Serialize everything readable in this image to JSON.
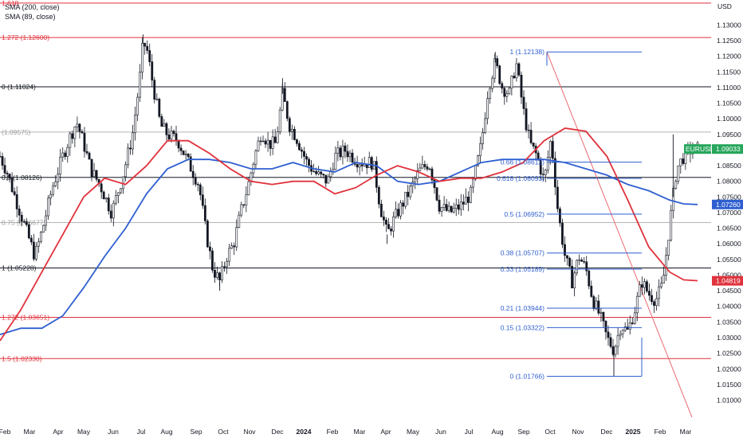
{
  "legend": {
    "sma200": "SMA (200, close)",
    "sma89": "SMA (89, close)"
  },
  "currency": "USD",
  "colors": {
    "candle": "#131722",
    "sma200": "#2f5fd0",
    "sma89": "#e0323c",
    "fib_red": "#e0323c",
    "fib_black": "#131722",
    "fib_gray": "#9e9e9e",
    "fib_blue": "#2f5fd0",
    "eurusd_tag": "#26a65b",
    "trendline": "#e86a72"
  },
  "chart_data": {
    "type": "candlestick",
    "symbol": "EURUSD",
    "current_price": "1.09033",
    "sma200_value": "1.07260",
    "sma89_value": "1.04819",
    "ylim": [
      1.003,
      1.138
    ],
    "y_ticks": [
      "1.13000",
      "1.12500",
      "1.12000",
      "1.11500",
      "1.11000",
      "1.10500",
      "1.10000",
      "1.09500",
      "1.09000",
      "1.08500",
      "1.08000",
      "1.07500",
      "1.07000",
      "1.06500",
      "1.06000",
      "1.05500",
      "1.05000",
      "1.04500",
      "1.04000",
      "1.03500",
      "1.03000",
      "1.02500",
      "1.02000",
      "1.01500",
      "1.01000"
    ],
    "x_labels": [
      "Feb",
      "Mar",
      "Apr",
      "May",
      "Jun",
      "Jul",
      "Aug",
      "Sep",
      "Oct",
      "Nov",
      "Dec",
      "2024",
      "Feb",
      "Mar",
      "Apr",
      "May",
      "Jun",
      "Jul",
      "Aug",
      "Sep",
      "Oct",
      "Nov",
      "Dec",
      "2025",
      "Feb",
      "Mar"
    ],
    "x_bold": [
      "2024",
      "2025"
    ],
    "close_path": [
      [
        0,
        1.088
      ],
      [
        0.01,
        1.083
      ],
      [
        0.02,
        1.076
      ],
      [
        0.035,
        1.066
      ],
      [
        0.05,
        1.056
      ],
      [
        0.06,
        1.064
      ],
      [
        0.075,
        1.078
      ],
      [
        0.09,
        1.088
      ],
      [
        0.1,
        1.094
      ],
      [
        0.11,
        1.099
      ],
      [
        0.12,
        1.092
      ],
      [
        0.13,
        1.084
      ],
      [
        0.145,
        1.078
      ],
      [
        0.16,
        1.07
      ],
      [
        0.175,
        1.081
      ],
      [
        0.19,
        1.095
      ],
      [
        0.2,
        1.112
      ],
      [
        0.205,
        1.124
      ],
      [
        0.21,
        1.123
      ],
      [
        0.22,
        1.11
      ],
      [
        0.23,
        1.098
      ],
      [
        0.24,
        1.095
      ],
      [
        0.255,
        1.093
      ],
      [
        0.27,
        1.086
      ],
      [
        0.285,
        1.079
      ],
      [
        0.295,
        1.064
      ],
      [
        0.305,
        1.052
      ],
      [
        0.315,
        1.048
      ],
      [
        0.325,
        1.056
      ],
      [
        0.335,
        1.06
      ],
      [
        0.345,
        1.07
      ],
      [
        0.355,
        1.078
      ],
      [
        0.365,
        1.088
      ],
      [
        0.375,
        1.096
      ],
      [
        0.385,
        1.092
      ],
      [
        0.395,
        1.092
      ],
      [
        0.405,
        1.108
      ],
      [
        0.415,
        1.098
      ],
      [
        0.425,
        1.094
      ],
      [
        0.44,
        1.086
      ],
      [
        0.455,
        1.082
      ],
      [
        0.47,
        1.08
      ],
      [
        0.48,
        1.088
      ],
      [
        0.495,
        1.09
      ],
      [
        0.51,
        1.087
      ],
      [
        0.52,
        1.086
      ],
      [
        0.535,
        1.086
      ],
      [
        0.545,
        1.072
      ],
      [
        0.555,
        1.063
      ],
      [
        0.565,
        1.068
      ],
      [
        0.575,
        1.072
      ],
      [
        0.59,
        1.078
      ],
      [
        0.6,
        1.083
      ],
      [
        0.615,
        1.086
      ],
      [
        0.63,
        1.072
      ],
      [
        0.645,
        1.07
      ],
      [
        0.66,
        1.072
      ],
      [
        0.675,
        1.076
      ],
      [
        0.69,
        1.092
      ],
      [
        0.7,
        1.11
      ],
      [
        0.71,
        1.118
      ],
      [
        0.72,
        1.11
      ],
      [
        0.73,
        1.108
      ],
      [
        0.74,
        1.118
      ],
      [
        0.75,
        1.103
      ],
      [
        0.76,
        1.092
      ],
      [
        0.77,
        1.088
      ],
      [
        0.78,
        1.08
      ],
      [
        0.79,
        1.094
      ],
      [
        0.8,
        1.07
      ],
      [
        0.81,
        1.056
      ],
      [
        0.82,
        1.048
      ],
      [
        0.83,
        1.056
      ],
      [
        0.84,
        1.052
      ],
      [
        0.85,
        1.042
      ],
      [
        0.86,
        1.037
      ],
      [
        0.87,
        1.03
      ],
      [
        0.88,
        1.026
      ],
      [
        0.89,
        1.034
      ],
      [
        0.9,
        1.032
      ],
      [
        0.91,
        1.039
      ],
      [
        0.92,
        1.048
      ],
      [
        0.93,
        1.044
      ],
      [
        0.94,
        1.042
      ],
      [
        0.95,
        1.047
      ],
      [
        0.96,
        1.066
      ],
      [
        0.97,
        1.084
      ],
      [
        0.98,
        1.088
      ],
      [
        0.99,
        1.09
      ],
      [
        1.0,
        1.0903
      ]
    ],
    "sma200_path": [
      [
        0,
        1.031
      ],
      [
        0.03,
        1.033
      ],
      [
        0.06,
        1.033
      ],
      [
        0.09,
        1.037
      ],
      [
        0.12,
        1.046
      ],
      [
        0.15,
        1.056
      ],
      [
        0.18,
        1.065
      ],
      [
        0.21,
        1.076
      ],
      [
        0.24,
        1.084
      ],
      [
        0.27,
        1.087
      ],
      [
        0.3,
        1.087
      ],
      [
        0.33,
        1.086
      ],
      [
        0.36,
        1.084
      ],
      [
        0.39,
        1.084
      ],
      [
        0.42,
        1.086
      ],
      [
        0.45,
        1.084
      ],
      [
        0.48,
        1.083
      ],
      [
        0.51,
        1.086
      ],
      [
        0.54,
        1.085
      ],
      [
        0.57,
        1.08
      ],
      [
        0.6,
        1.079
      ],
      [
        0.63,
        1.08
      ],
      [
        0.66,
        1.083
      ],
      [
        0.69,
        1.086
      ],
      [
        0.72,
        1.087
      ],
      [
        0.75,
        1.087
      ],
      [
        0.78,
        1.087
      ],
      [
        0.81,
        1.086
      ],
      [
        0.84,
        1.084
      ],
      [
        0.87,
        1.082
      ],
      [
        0.9,
        1.079
      ],
      [
        0.93,
        1.077
      ],
      [
        0.96,
        1.074
      ],
      [
        0.98,
        1.0728
      ],
      [
        1.0,
        1.0726
      ]
    ],
    "sma89_path": [
      [
        0,
        1.029
      ],
      [
        0.03,
        1.039
      ],
      [
        0.06,
        1.051
      ],
      [
        0.09,
        1.063
      ],
      [
        0.12,
        1.075
      ],
      [
        0.15,
        1.081
      ],
      [
        0.18,
        1.079
      ],
      [
        0.21,
        1.085
      ],
      [
        0.24,
        1.093
      ],
      [
        0.27,
        1.093
      ],
      [
        0.3,
        1.089
      ],
      [
        0.33,
        1.084
      ],
      [
        0.36,
        1.08
      ],
      [
        0.39,
        1.079
      ],
      [
        0.42,
        1.08
      ],
      [
        0.45,
        1.08
      ],
      [
        0.48,
        1.076
      ],
      [
        0.51,
        1.078
      ],
      [
        0.54,
        1.082
      ],
      [
        0.57,
        1.085
      ],
      [
        0.6,
        1.083
      ],
      [
        0.63,
        1.08
      ],
      [
        0.66,
        1.081
      ],
      [
        0.69,
        1.081
      ],
      [
        0.72,
        1.083
      ],
      [
        0.75,
        1.086
      ],
      [
        0.78,
        1.093
      ],
      [
        0.81,
        1.097
      ],
      [
        0.84,
        1.096
      ],
      [
        0.87,
        1.088
      ],
      [
        0.9,
        1.074
      ],
      [
        0.93,
        1.059
      ],
      [
        0.96,
        1.051
      ],
      [
        0.98,
        1.0485
      ],
      [
        1.0,
        1.0482
      ]
    ],
    "highs_lows": [
      [
        0.205,
        1.127
      ],
      [
        0.315,
        1.045
      ],
      [
        0.405,
        1.113
      ],
      [
        0.555,
        1.06
      ],
      [
        0.71,
        1.1214
      ],
      [
        0.88,
        1.0177
      ],
      [
        0.965,
        1.095
      ]
    ],
    "fib_main": [
      {
        "label": "0 (1.11024)",
        "value": 1.11024,
        "color": "fib_black"
      },
      {
        "label": "(1.09575)",
        "value": 1.09575,
        "color": "fib_gray"
      },
      {
        "label": "0.5 (1.08126)",
        "value": 1.08126,
        "color": "fib_black"
      },
      {
        "label": "0.75 (1.06677)",
        "value": 1.06677,
        "color": "fib_gray"
      },
      {
        "label": "1 (1.05228)",
        "value": 1.05228,
        "color": "fib_black"
      },
      {
        "label": "1.272 (1.12600)",
        "value": 1.126,
        "color": "fib_red"
      },
      {
        "label": "1.272 (1.03651)",
        "value": 1.03651,
        "color": "fib_red"
      },
      {
        "label": "1.5 (1.02330)",
        "value": 1.0233,
        "color": "fib_red"
      },
      {
        "label": "1.618",
        "value": 1.137,
        "color": "fib_red"
      }
    ],
    "fib_retrace": [
      {
        "label": "1 (1.12138)",
        "value": 1.12138
      },
      {
        "label": "0.66 (1.08612)",
        "value": 1.08612
      },
      {
        "label": "0.618 (1.08093)",
        "value": 1.08093
      },
      {
        "label": "0.5 (1.06952)",
        "value": 1.06952
      },
      {
        "label": "0.38 (1.05707)",
        "value": 1.05707
      },
      {
        "label": "0.33 (1.05189)",
        "value": 1.05189
      },
      {
        "label": "0.21 (1.03944)",
        "value": 1.03944
      },
      {
        "label": "0.15 (1.03322)",
        "value": 1.03322
      },
      {
        "label": "0 (1.01766)",
        "value": 1.01766
      }
    ]
  }
}
